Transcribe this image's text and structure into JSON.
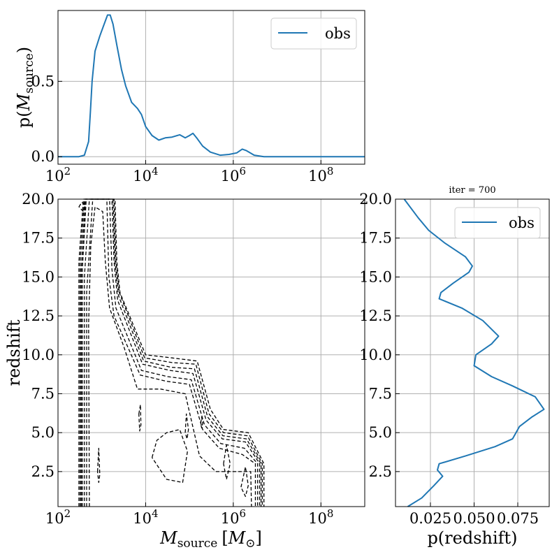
{
  "chart_data": [
    {
      "id": "top",
      "type": "line",
      "xscale": "log",
      "xlim": [
        100,
        1000000000
      ],
      "ylim": [
        -0.05,
        0.97
      ],
      "xticks": [
        100,
        10000,
        1000000,
        100000000
      ],
      "xtick_labels": [
        {
          "base": "10",
          "exp": "2"
        },
        {
          "base": "10",
          "exp": "4"
        },
        {
          "base": "10",
          "exp": "6"
        },
        {
          "base": "10",
          "exp": "8"
        }
      ],
      "yticks": [
        0.0,
        0.5
      ],
      "ytick_labels": [
        "0.0",
        "0.5"
      ],
      "ylabel": {
        "pre": "p(",
        "sym": "M",
        "sub": "source",
        "post": ")"
      },
      "grid": true,
      "legend": {
        "position": "top-right",
        "entries": [
          "obs"
        ]
      },
      "series": [
        {
          "name": "obs",
          "color": "#1f77b4",
          "points": [
            [
              100,
              0.0
            ],
            [
              300,
              0.0
            ],
            [
              400,
              0.01
            ],
            [
              500,
              0.1
            ],
            [
              550,
              0.3
            ],
            [
              600,
              0.5
            ],
            [
              700,
              0.7
            ],
            [
              900,
              0.8
            ],
            [
              1100,
              0.87
            ],
            [
              1350,
              0.94
            ],
            [
              1550,
              0.94
            ],
            [
              1800,
              0.88
            ],
            [
              2200,
              0.74
            ],
            [
              2800,
              0.58
            ],
            [
              3500,
              0.47
            ],
            [
              4800,
              0.36
            ],
            [
              6500,
              0.32
            ],
            [
              8000,
              0.28
            ],
            [
              10000,
              0.2
            ],
            [
              14000,
              0.14
            ],
            [
              20000,
              0.11
            ],
            [
              28000,
              0.125
            ],
            [
              40000,
              0.13
            ],
            [
              60000,
              0.145
            ],
            [
              80000,
              0.125
            ],
            [
              100000,
              0.14
            ],
            [
              120000,
              0.155
            ],
            [
              150000,
              0.12
            ],
            [
              200000,
              0.07
            ],
            [
              300000,
              0.03
            ],
            [
              500000,
              0.01
            ],
            [
              800000,
              0.015
            ],
            [
              1200000,
              0.025
            ],
            [
              1600000,
              0.05
            ],
            [
              2000000,
              0.04
            ],
            [
              3000000,
              0.01
            ],
            [
              5000000,
              0.0
            ],
            [
              1000000000,
              0.0
            ]
          ]
        }
      ]
    },
    {
      "id": "main",
      "type": "contour",
      "xscale": "log",
      "xlim": [
        100,
        1000000000
      ],
      "ylim": [
        0.25,
        20
      ],
      "xticks": [
        100,
        10000,
        1000000,
        100000000
      ],
      "xtick_labels": [
        {
          "base": "10",
          "exp": "2"
        },
        {
          "base": "10",
          "exp": "4"
        },
        {
          "base": "10",
          "exp": "6"
        },
        {
          "base": "10",
          "exp": "8"
        }
      ],
      "yticks": [
        2.5,
        5.0,
        7.5,
        10.0,
        12.5,
        15.0,
        17.5,
        20.0
      ],
      "ytick_labels": [
        "2.5",
        "5.0",
        "7.5",
        "10.0",
        "12.5",
        "15.0",
        "17.5",
        "20.0"
      ],
      "xlabel": {
        "sym": "M",
        "sub": "source",
        "unit_pre": "[",
        "unit_sym": "M",
        "unit_sub": "⊙",
        "unit_post": "]"
      },
      "ylabel": "redshift",
      "grid": true,
      "line_style": "dashed",
      "color": "#000000",
      "contours": [
        {
          "level": 1,
          "path": [
            [
              300,
              0.25
            ],
            [
              300,
              16
            ],
            [
              380,
              20
            ],
            [
              2000,
              20
            ],
            [
              2200,
              16
            ],
            [
              2600,
              14
            ],
            [
              10000,
              10
            ],
            [
              40000,
              9.8
            ],
            [
              150000,
              9.6
            ],
            [
              300000,
              6.5
            ],
            [
              600000,
              5.2
            ],
            [
              2200000,
              5.0
            ],
            [
              5000000,
              3
            ],
            [
              5000000,
              0.25
            ]
          ]
        },
        {
          "level": 2,
          "path": [
            [
              320,
              0.25
            ],
            [
              320,
              16
            ],
            [
              400,
              20
            ],
            [
              1900,
              20
            ],
            [
              2100,
              16
            ],
            [
              2500,
              14
            ],
            [
              9500,
              9.8
            ],
            [
              40000,
              9.5
            ],
            [
              140000,
              9.4
            ],
            [
              280000,
              6.2
            ],
            [
              600000,
              5.0
            ],
            [
              2100000,
              4.8
            ],
            [
              4600000,
              3
            ],
            [
              4600000,
              0.25
            ]
          ]
        },
        {
          "level": 3,
          "path": [
            [
              340,
              0.25
            ],
            [
              340,
              15.5
            ],
            [
              420,
              20
            ],
            [
              1800,
              20
            ],
            [
              2000,
              16
            ],
            [
              2400,
              13.8
            ],
            [
              9000,
              9.6
            ],
            [
              38000,
              9.2
            ],
            [
              130000,
              9.1
            ],
            [
              260000,
              6.0
            ],
            [
              580000,
              4.8
            ],
            [
              2000000,
              4.6
            ],
            [
              4300000,
              3
            ],
            [
              4300000,
              0.25
            ]
          ]
        },
        {
          "level": 4,
          "path": [
            [
              360,
              0.25
            ],
            [
              360,
              15.5
            ],
            [
              440,
              20
            ],
            [
              1700,
              20
            ],
            [
              1900,
              16
            ],
            [
              2300,
              13.5
            ],
            [
              8500,
              9.4
            ],
            [
              36000,
              9.0
            ],
            [
              120000,
              8.8
            ],
            [
              240000,
              5.8
            ],
            [
              560000,
              4.6
            ],
            [
              1900000,
              4.4
            ],
            [
              4000000,
              3
            ],
            [
              4000000,
              0.25
            ]
          ]
        },
        {
          "level": 5,
          "path": [
            [
              400,
              0.25
            ],
            [
              400,
              15
            ],
            [
              520,
              20
            ],
            [
              1500,
              20
            ],
            [
              1700,
              15.5
            ],
            [
              2100,
              13
            ],
            [
              8000,
              9.0
            ],
            [
              32000,
              8.6
            ],
            [
              110000,
              8.4
            ],
            [
              220000,
              5.5
            ],
            [
              520000,
              4.3
            ],
            [
              1800000,
              4.0
            ],
            [
              3600000,
              3
            ],
            [
              3600000,
              0.25
            ]
          ]
        },
        {
          "level": 6,
          "path": [
            [
              450,
              0.25
            ],
            [
              450,
              14
            ],
            [
              620,
              20
            ],
            [
              1300,
              20
            ],
            [
              1450,
              15
            ],
            [
              1900,
              12.5
            ],
            [
              7500,
              8.7
            ],
            [
              30000,
              8.3
            ],
            [
              100000,
              8.1
            ],
            [
              200000,
              5.2
            ],
            [
              480000,
              4.0
            ],
            [
              1600000,
              3.6
            ],
            [
              3200000,
              3
            ],
            [
              3200000,
              0.25
            ]
          ]
        },
        {
          "level": 7,
          "path": [
            [
              520,
              0.25
            ],
            [
              500,
              12
            ],
            [
              560,
              17
            ],
            [
              700,
              19.5
            ],
            [
              1050,
              19.2
            ],
            [
              1200,
              16
            ],
            [
              1500,
              13
            ],
            [
              3200,
              10.5
            ],
            [
              6500,
              7.8
            ],
            [
              22000,
              7.8
            ],
            [
              80000,
              7.5
            ],
            [
              170000,
              3.5
            ],
            [
              400000,
              2.5
            ],
            [
              1200000,
              2.5
            ],
            [
              2500000,
              2.5
            ],
            [
              2600000,
              0.25
            ]
          ]
        },
        {
          "level": 8,
          "path": [
            [
              300,
              19.5
            ],
            [
              350,
              19.8
            ],
            [
              420,
              19.6
            ],
            [
              380,
              19.2
            ],
            [
              300,
              19.5
            ]
          ]
        },
        {
          "level": 8,
          "path": [
            [
              7000,
              6.2
            ],
            [
              7600,
              6.8
            ],
            [
              7800,
              5.5
            ],
            [
              7300,
              5.1
            ],
            [
              7000,
              6.2
            ]
          ]
        },
        {
          "level": 8,
          "path": [
            [
              14000,
              3.4
            ],
            [
              18000,
              4.5
            ],
            [
              30000,
              5.0
            ],
            [
              60000,
              5.2
            ],
            [
              90000,
              3.8
            ],
            [
              70000,
              1.8
            ],
            [
              30000,
              2.0
            ],
            [
              14000,
              3.4
            ]
          ]
        },
        {
          "level": 8,
          "path": [
            [
              800,
              2.5
            ],
            [
              850,
              4.0
            ],
            [
              900,
              2.3
            ],
            [
              850,
              1.8
            ],
            [
              800,
              2.5
            ]
          ]
        },
        {
          "level": 8,
          "path": [
            [
              600000,
              3.0
            ],
            [
              700000,
              4.2
            ],
            [
              850000,
              3.0
            ],
            [
              700000,
              2.0
            ],
            [
              600000,
              3.0
            ]
          ]
        },
        {
          "level": 8,
          "path": [
            [
              1500000,
              1.5
            ],
            [
              1900000,
              2.8
            ],
            [
              2200000,
              1.6
            ],
            [
              1900000,
              0.9
            ],
            [
              1500000,
              1.5
            ]
          ]
        },
        {
          "level": 8,
          "path": [
            [
              80000,
              5.0
            ],
            [
              85000,
              6.2
            ],
            [
              95000,
              5.2
            ],
            [
              88000,
              4.6
            ],
            [
              80000,
              5.0
            ]
          ]
        },
        {
          "level": 8,
          "path": [
            [
              180000,
              5.6
            ],
            [
              190000,
              6.0
            ],
            [
              200000,
              5.6
            ],
            [
              190000,
              5.3
            ],
            [
              180000,
              5.6
            ]
          ]
        }
      ]
    },
    {
      "id": "right",
      "type": "line",
      "title": "iter = 700",
      "xlim": [
        0.005,
        0.093
      ],
      "ylim": [
        0.25,
        20
      ],
      "xticks": [
        0.025,
        0.05,
        0.075
      ],
      "xtick_labels": [
        "0.025",
        "0.050",
        "0.075"
      ],
      "yticks": [
        2.5,
        5.0,
        7.5,
        10.0,
        12.5,
        15.0,
        17.5,
        20.0
      ],
      "ytick_labels": [
        "2.5",
        "5.0",
        "7.5",
        "10.0",
        "12.5",
        "15.0",
        "17.5",
        "20.0"
      ],
      "xlabel": "p(redshift)",
      "grid": true,
      "legend": {
        "position": "top-right",
        "entries": [
          "obs"
        ]
      },
      "series": [
        {
          "name": "obs",
          "color": "#1f77b4",
          "points": [
            [
              0.012,
              0.25
            ],
            [
              0.02,
              0.8
            ],
            [
              0.027,
              1.6
            ],
            [
              0.032,
              2.2
            ],
            [
              0.029,
              2.6
            ],
            [
              0.03,
              3.0
            ],
            [
              0.045,
              3.5
            ],
            [
              0.062,
              4.1
            ],
            [
              0.072,
              4.6
            ],
            [
              0.076,
              5.4
            ],
            [
              0.083,
              6.0
            ],
            [
              0.09,
              6.5
            ],
            [
              0.085,
              7.3
            ],
            [
              0.072,
              8.0
            ],
            [
              0.06,
              8.6
            ],
            [
              0.05,
              9.3
            ],
            [
              0.051,
              10.0
            ],
            [
              0.06,
              10.7
            ],
            [
              0.064,
              11.2
            ],
            [
              0.055,
              12.2
            ],
            [
              0.043,
              13.0
            ],
            [
              0.03,
              13.6
            ],
            [
              0.031,
              14.0
            ],
            [
              0.038,
              14.6
            ],
            [
              0.047,
              15.3
            ],
            [
              0.049,
              15.7
            ],
            [
              0.045,
              16.3
            ],
            [
              0.033,
              17.2
            ],
            [
              0.024,
              18.0
            ],
            [
              0.018,
              18.8
            ],
            [
              0.01,
              20.0
            ]
          ]
        }
      ]
    }
  ]
}
